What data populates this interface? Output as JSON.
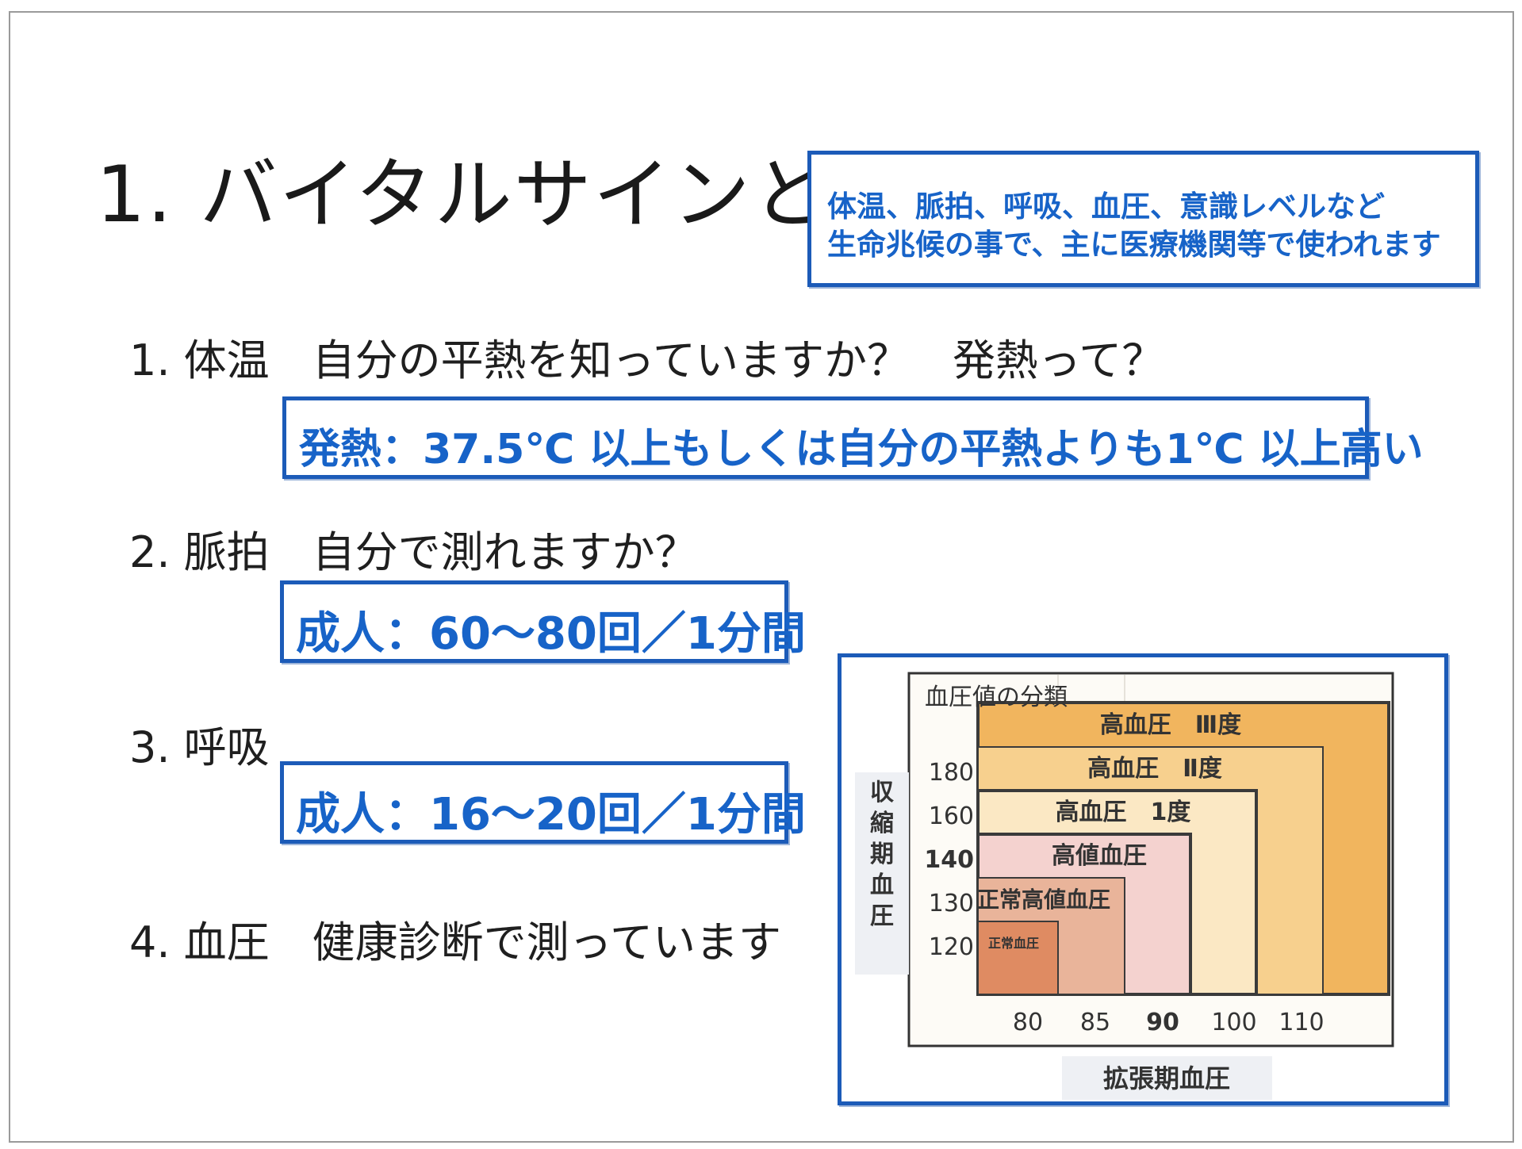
{
  "title": "1. バイタルサインとは",
  "definition_box": {
    "line1": "体温、脈拍、呼吸、血圧、意識レベルなど",
    "line2": "生命兆候の事で、主に医療機関等で使われます"
  },
  "items": [
    {
      "heading": "1. 体温　自分の平熱を知っていますか？　発熱って？",
      "box": "発熱：37.5℃ 以上もしくは自分の平熱よりも1℃ 以上高い"
    },
    {
      "heading": "2. 脈拍　自分で測れますか？",
      "box": "成人：60～80回／1分間"
    },
    {
      "heading": "3. 呼吸",
      "box": "成人：16～20回／1分間"
    },
    {
      "heading": "4. 血圧　健康診断で測っています"
    }
  ],
  "chart_data": {
    "type": "heatmap",
    "title": "血圧値の分類",
    "ylabel": "収縮期血圧",
    "xlabel": "拡張期血圧",
    "y_ticks": [
      "180",
      "160",
      "140",
      "130",
      "120"
    ],
    "x_ticks": [
      "80",
      "85",
      "90",
      "100",
      "110"
    ],
    "bold_ticks": [
      "140",
      "90"
    ],
    "categories": [
      {
        "name": "高血圧　Ⅲ度",
        "systolic_min": 180,
        "diastolic_min": 110,
        "color": "#f1b55e"
      },
      {
        "name": "高血圧　Ⅱ度",
        "systolic_min": 160,
        "diastolic_min": 100,
        "color": "#f7d08e"
      },
      {
        "name": "高血圧　1度",
        "systolic_min": 140,
        "diastolic_min": 90,
        "color": "#fbe8c4"
      },
      {
        "name": "高値血圧",
        "systolic_min": 130,
        "diastolic_min": 80,
        "color": "#f4d2cf"
      },
      {
        "name": "正常高値血圧",
        "systolic_min": 120,
        "diastolic_min": null,
        "color": "#e9b49a"
      },
      {
        "name": "正常血圧",
        "systolic_max": 120,
        "diastolic_max": 80,
        "color": "#df8b62"
      }
    ]
  }
}
